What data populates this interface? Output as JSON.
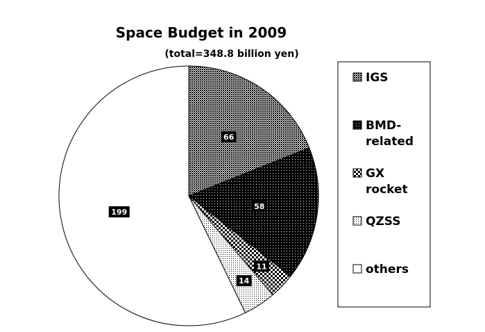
{
  "chart_data": {
    "type": "pie",
    "title": "Space Budget in 2009",
    "subtitle": "(total=348.8 billion yen)",
    "legend_position": "right",
    "slices": [
      {
        "name": "IGS",
        "legend_lines": [
          "IGS"
        ],
        "value": 66,
        "label": "66",
        "pattern": "dense-dots"
      },
      {
        "name": "BMD-related",
        "legend_lines": [
          "BMD-",
          "related"
        ],
        "value": 58,
        "label": "58",
        "pattern": "dark-grid"
      },
      {
        "name": "GX rocket",
        "legend_lines": [
          "GX",
          "rocket"
        ],
        "value": 11,
        "label": "11",
        "pattern": "checker"
      },
      {
        "name": "QZSS",
        "legend_lines": [
          "QZSS"
        ],
        "value": 14,
        "label": "14",
        "pattern": "light-dots"
      },
      {
        "name": "others",
        "legend_lines": [
          "others"
        ],
        "value": 199,
        "label": "199",
        "pattern": "white"
      }
    ]
  }
}
